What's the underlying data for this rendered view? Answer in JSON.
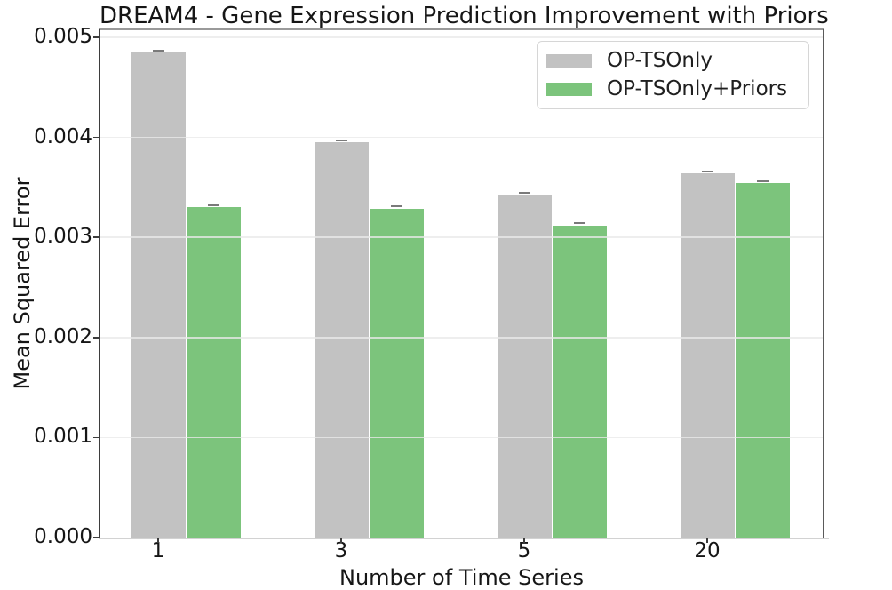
{
  "chart_data": {
    "type": "bar",
    "title": "DREAM4 - Gene Expression Prediction Improvement with Priors",
    "xlabel": "Number of Time Series",
    "ylabel": "Mean Squared Error",
    "categories": [
      "1",
      "3",
      "5",
      "20"
    ],
    "series": [
      {
        "name": "OP-TSOnly",
        "color": "#c2c2c2",
        "values": [
          0.00485,
          0.00395,
          0.00343,
          0.00364
        ],
        "errors": [
          2e-05,
          2e-05,
          2e-05,
          2e-05
        ]
      },
      {
        "name": "OP-TSOnly+Priors",
        "color": "#7cc47c",
        "values": [
          0.0033,
          0.00329,
          0.00312,
          0.00354
        ],
        "errors": [
          2e-05,
          2e-05,
          2e-05,
          2e-05
        ]
      }
    ],
    "yticks": [
      "0.000",
      "0.001",
      "0.002",
      "0.003",
      "0.004",
      "0.005"
    ],
    "ylim": [
      0,
      0.00508
    ],
    "grid": true,
    "legend_position": "upper right",
    "error_bar_color": "#7a7a7a",
    "grid_color": "#e9e9e9"
  }
}
